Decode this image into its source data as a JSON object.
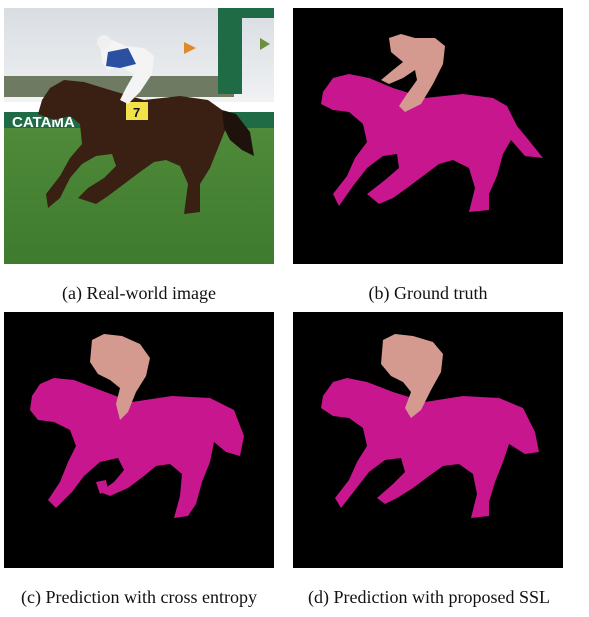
{
  "figure": {
    "panels": [
      {
        "id": "a",
        "caption": "(a) Real-world image"
      },
      {
        "id": "b",
        "caption": "(b) Ground truth"
      },
      {
        "id": "c",
        "caption": "(c) Prediction with cross entropy"
      },
      {
        "id": "d",
        "caption": "(d) Prediction with proposed SSL"
      }
    ],
    "photo_sign_text": "CATAMA",
    "saddle_cloth_number": "7",
    "colors": {
      "background": "#000000",
      "horse_mask": "#c8168f",
      "rider_mask": "#d49a8f"
    }
  }
}
